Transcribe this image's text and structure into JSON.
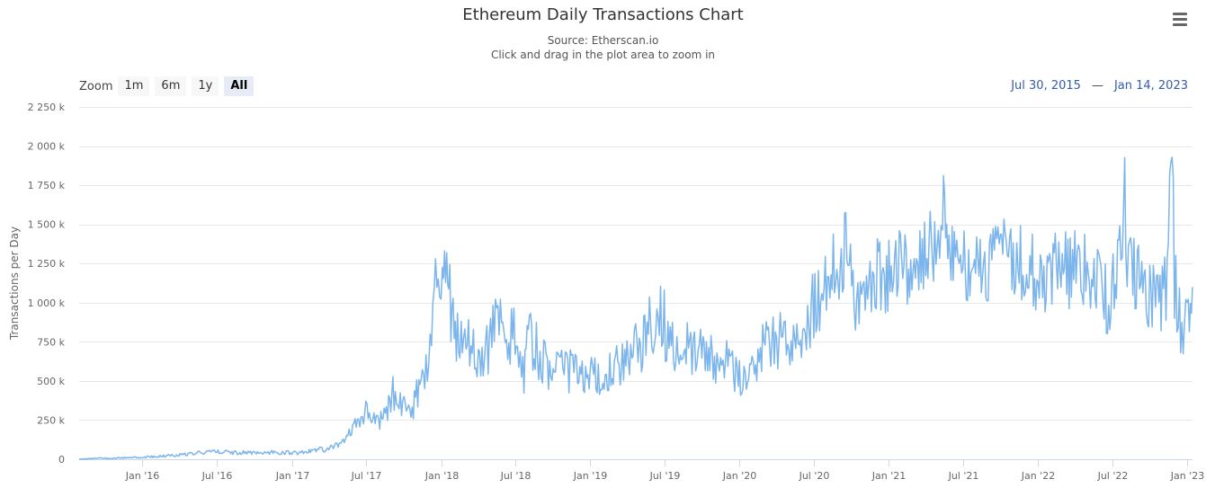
{
  "header": {
    "title": "Ethereum Daily Transactions Chart",
    "subtitle_source": "Source: Etherscan.io",
    "subtitle_hint": "Click and drag in the plot area to zoom in"
  },
  "range_selector": {
    "zoom_label": "Zoom",
    "buttons": [
      "1m",
      "6m",
      "1y",
      "All"
    ],
    "active": "All"
  },
  "date_range": {
    "from": "Jul 30, 2015",
    "to": "Jan 14, 2023",
    "separator": "—"
  },
  "menu_icon": "hamburger-menu-icon",
  "chart_data": {
    "type": "line",
    "title": "Ethereum Daily Transactions Chart",
    "subtitle": "Source: Etherscan.io",
    "xlabel": "",
    "ylabel": "Transactions per Day",
    "x_range": [
      "2015-07-30",
      "2023-01-14"
    ],
    "ylim": [
      0,
      2250000
    ],
    "y_ticks": [
      0,
      250000,
      500000,
      750000,
      1000000,
      1250000,
      1500000,
      1750000,
      2000000,
      2250000
    ],
    "y_tick_labels": [
      "0",
      "250 k",
      "500 k",
      "750 k",
      "1 000 k",
      "1 250 k",
      "1 500 k",
      "1 750 k",
      "2 000 k",
      "2 250 k"
    ],
    "x_ticks": [
      "2016-01-01",
      "2016-07-01",
      "2017-01-01",
      "2017-07-01",
      "2018-01-01",
      "2018-07-01",
      "2019-01-01",
      "2019-07-01",
      "2020-01-01",
      "2020-07-01",
      "2021-01-01",
      "2021-07-01",
      "2022-01-01",
      "2022-07-01",
      "2023-01-01"
    ],
    "x_tick_labels": [
      "Jan '16",
      "Jul '16",
      "Jan '17",
      "Jul '17",
      "Jan '18",
      "Jul '18",
      "Jan '19",
      "Jul '19",
      "Jan '20",
      "Jul '20",
      "Jan '21",
      "Jul '21",
      "Jan '22",
      "Jul '22",
      "Jan '23"
    ],
    "grid": "horizontal",
    "legend": "none",
    "series": [
      {
        "color": "#7cb5ec",
        "points": [
          [
            "2015-07-30",
            0
          ],
          [
            "2015-09-01",
            5000
          ],
          [
            "2015-11-01",
            8000
          ],
          [
            "2016-01-01",
            12000
          ],
          [
            "2016-03-01",
            22000
          ],
          [
            "2016-05-01",
            38000
          ],
          [
            "2016-06-01",
            45000
          ],
          [
            "2016-07-01",
            50000
          ],
          [
            "2016-09-01",
            42000
          ],
          [
            "2016-11-01",
            45000
          ],
          [
            "2017-01-01",
            40000
          ],
          [
            "2017-03-01",
            55000
          ],
          [
            "2017-04-15",
            75000
          ],
          [
            "2017-05-15",
            130000
          ],
          [
            "2017-06-10",
            230000
          ],
          [
            "2017-06-25",
            300000
          ],
          [
            "2017-07-15",
            280000
          ],
          [
            "2017-08-01",
            240000
          ],
          [
            "2017-08-20",
            300000
          ],
          [
            "2017-09-05",
            430000
          ],
          [
            "2017-09-20",
            380000
          ],
          [
            "2017-10-05",
            300000
          ],
          [
            "2017-10-25",
            350000
          ],
          [
            "2017-11-10",
            460000
          ],
          [
            "2017-11-25",
            560000
          ],
          [
            "2017-12-05",
            700000
          ],
          [
            "2017-12-15",
            1050000
          ],
          [
            "2017-12-25",
            1120000
          ],
          [
            "2018-01-04",
            1350000
          ],
          [
            "2018-01-12",
            1200000
          ],
          [
            "2018-01-25",
            950000
          ],
          [
            "2018-02-10",
            800000
          ],
          [
            "2018-02-25",
            700000
          ],
          [
            "2018-03-15",
            750000
          ],
          [
            "2018-04-05",
            620000
          ],
          [
            "2018-04-20",
            680000
          ],
          [
            "2018-05-05",
            800000
          ],
          [
            "2018-05-20",
            830000
          ],
          [
            "2018-06-10",
            760000
          ],
          [
            "2018-06-25",
            800000
          ],
          [
            "2018-07-10",
            620000
          ],
          [
            "2018-07-20",
            530000
          ],
          [
            "2018-08-05",
            750000
          ],
          [
            "2018-08-25",
            700000
          ],
          [
            "2018-09-15",
            600000
          ],
          [
            "2018-10-05",
            540000
          ],
          [
            "2018-11-01",
            560000
          ],
          [
            "2018-12-01",
            560000
          ],
          [
            "2019-01-01",
            540000
          ],
          [
            "2019-02-01",
            500000
          ],
          [
            "2019-03-01",
            560000
          ],
          [
            "2019-04-01",
            640000
          ],
          [
            "2019-05-01",
            720000
          ],
          [
            "2019-05-20",
            850000
          ],
          [
            "2019-06-10",
            880000
          ],
          [
            "2019-06-25",
            950000
          ],
          [
            "2019-07-10",
            760000
          ],
          [
            "2019-08-01",
            680000
          ],
          [
            "2019-09-01",
            720000
          ],
          [
            "2019-10-01",
            680000
          ],
          [
            "2019-11-01",
            640000
          ],
          [
            "2019-12-01",
            600000
          ],
          [
            "2020-01-01",
            540000
          ],
          [
            "2020-02-01",
            620000
          ],
          [
            "2020-03-01",
            700000
          ],
          [
            "2020-04-01",
            770000
          ],
          [
            "2020-05-01",
            800000
          ],
          [
            "2020-06-01",
            880000
          ],
          [
            "2020-07-01",
            1000000
          ],
          [
            "2020-08-01",
            1160000
          ],
          [
            "2020-09-01",
            1240000
          ],
          [
            "2020-09-20",
            1360000
          ],
          [
            "2020-10-05",
            1060000
          ],
          [
            "2020-11-01",
            1100000
          ],
          [
            "2020-12-01",
            1150000
          ],
          [
            "2021-01-01",
            1200000
          ],
          [
            "2021-02-01",
            1230000
          ],
          [
            "2021-03-01",
            1250000
          ],
          [
            "2021-04-01",
            1300000
          ],
          [
            "2021-04-20",
            1380000
          ],
          [
            "2021-05-05",
            1520000
          ],
          [
            "2021-05-12",
            1720000
          ],
          [
            "2021-05-25",
            1400000
          ],
          [
            "2021-06-10",
            1200000
          ],
          [
            "2021-07-01",
            1220000
          ],
          [
            "2021-08-01",
            1250000
          ],
          [
            "2021-09-01",
            1230000
          ],
          [
            "2021-10-01",
            1320000
          ],
          [
            "2021-10-15",
            1400000
          ],
          [
            "2021-11-01",
            1300000
          ],
          [
            "2021-12-01",
            1260000
          ],
          [
            "2022-01-01",
            1200000
          ],
          [
            "2022-02-01",
            1180000
          ],
          [
            "2022-03-01",
            1200000
          ],
          [
            "2022-04-01",
            1220000
          ],
          [
            "2022-05-01",
            1180000
          ],
          [
            "2022-06-01",
            1080000
          ],
          [
            "2022-06-20",
            1020000
          ],
          [
            "2022-07-01",
            1150000
          ],
          [
            "2022-07-20",
            1250000
          ],
          [
            "2022-08-01",
            1680000
          ],
          [
            "2022-08-10",
            1200000
          ],
          [
            "2022-09-01",
            1150000
          ],
          [
            "2022-09-20",
            1100000
          ],
          [
            "2022-10-10",
            1080000
          ],
          [
            "2022-11-01",
            1050000
          ],
          [
            "2022-11-10",
            1120000
          ],
          [
            "2022-11-25",
            1950000
          ],
          [
            "2022-12-01",
            1150000
          ],
          [
            "2022-12-10",
            1000000
          ],
          [
            "2022-12-25",
            780000
          ],
          [
            "2023-01-01",
            960000
          ],
          [
            "2023-01-14",
            1100000
          ]
        ]
      }
    ]
  }
}
